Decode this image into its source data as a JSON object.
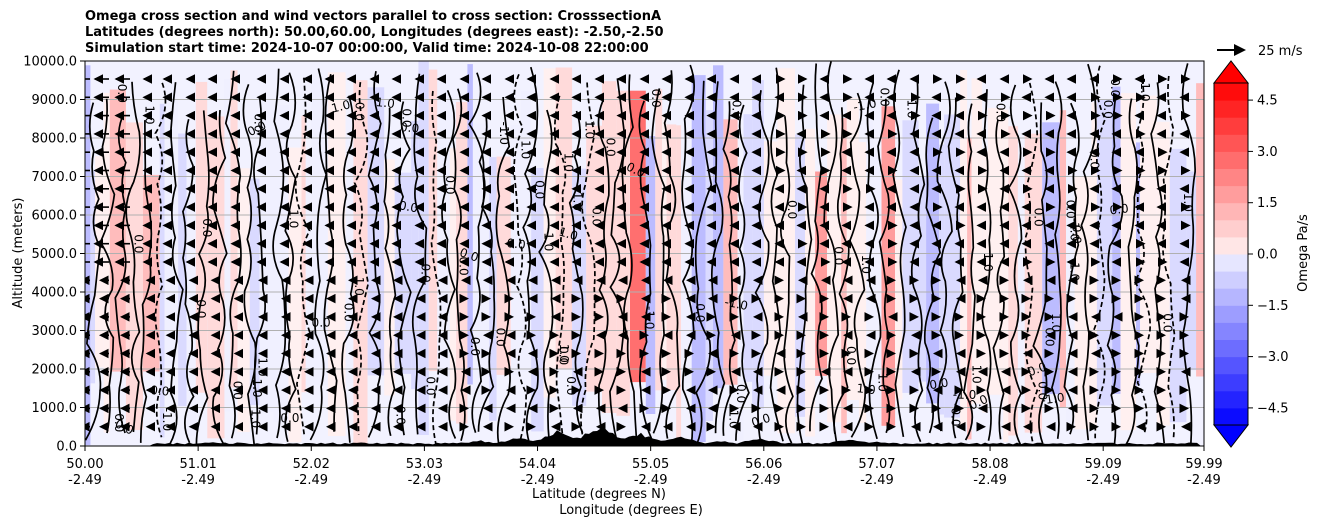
{
  "chart_data": {
    "type": "heatmap",
    "title_lines": [
      "Omega cross section and wind vectors parallel to cross section: CrosssectionA",
      "Latitudes (degrees north): 50.00,60.00, Longitudes (degrees east): -2.50,-2.50",
      "Simulation start time: 2024-10-07 00:00:00, Valid time: 2024-10-08 22:00:00"
    ],
    "ylabel": "Altitude (meters)",
    "xlabel_lat": "Latitude (degrees N)",
    "xlabel_lon": "Longitude (degrees E)",
    "ylim": [
      0,
      10000
    ],
    "y_ticks": [
      0,
      1000,
      2000,
      3000,
      4000,
      5000,
      6000,
      7000,
      8000,
      9000,
      10000
    ],
    "y_tick_labels": [
      "0.0",
      "1000.0",
      "2000.0",
      "3000.0",
      "4000.0",
      "5000.0",
      "6000.0",
      "7000.0",
      "8000.0",
      "9000.0",
      "10000.0"
    ],
    "xlim": [
      50.0,
      59.99
    ],
    "x_ticks_lat": [
      "50.00",
      "51.01",
      "52.02",
      "53.03",
      "54.04",
      "55.05",
      "56.06",
      "57.07",
      "58.08",
      "59.09",
      "59.99"
    ],
    "x_ticks_lon": [
      "-2.49",
      "-2.49",
      "-2.49",
      "-2.49",
      "-2.49",
      "-2.49",
      "-2.49",
      "-2.49",
      "-2.49",
      "-2.49",
      "-2.49"
    ],
    "colorbar": {
      "label": "Omega Pa/s",
      "range": [
        -5.0,
        5.0
      ],
      "ticks": [
        -4.5,
        -3.0,
        -1.5,
        0.0,
        1.5,
        3.0,
        4.5
      ],
      "tick_labels": [
        "−4.5",
        "−3.0",
        "−1.5",
        "0.0",
        "1.5",
        "3.0",
        "4.5"
      ],
      "extend": "both"
    },
    "vector_key": {
      "label": "25 m/s",
      "speed": 25
    },
    "contour_labels": [
      "0.0",
      "1.0",
      "-1.0"
    ],
    "colors": {
      "positive": "#ff0000",
      "negative": "#0000ff",
      "contour": "#000000",
      "terrain": "#000000",
      "grid": "#b0b0b0"
    }
  }
}
